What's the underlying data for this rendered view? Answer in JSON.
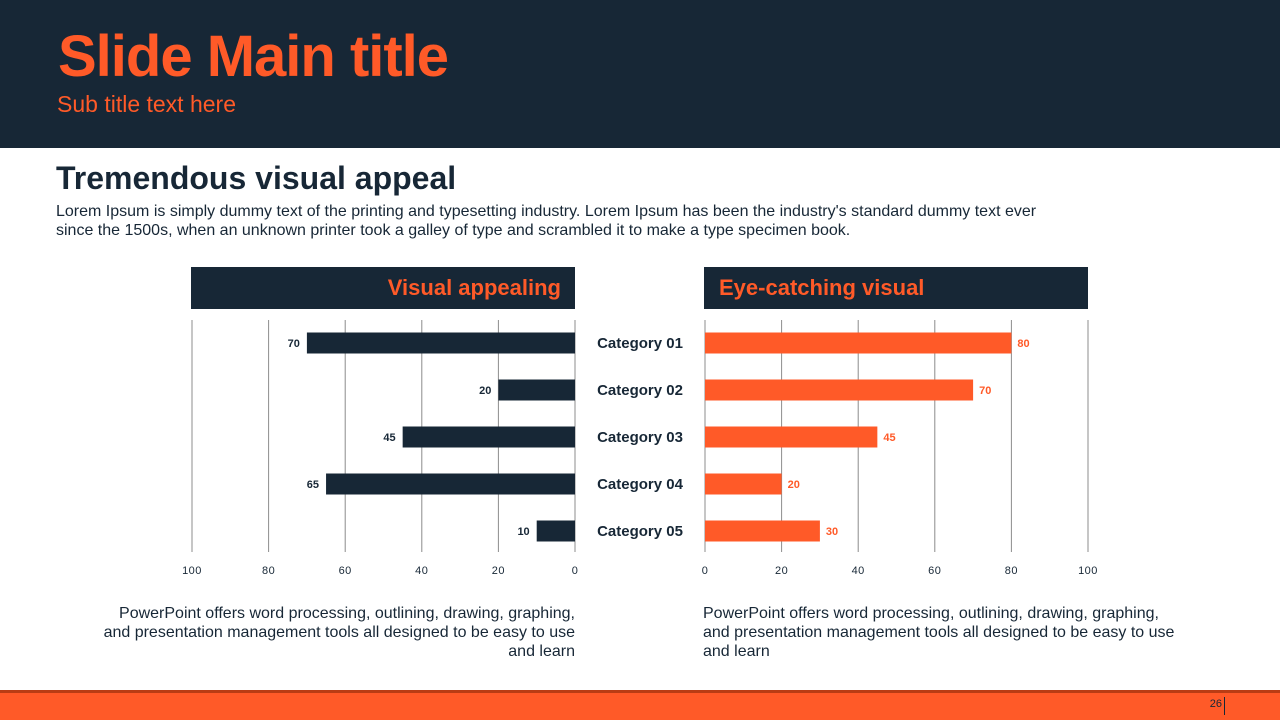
{
  "header": {
    "title": "Slide Main title",
    "subtitle": "Sub title text here"
  },
  "section": {
    "heading": "Tremendous visual appeal",
    "body": "Lorem Ipsum is simply dummy text of the printing and typesetting industry. Lorem Ipsum has been the industry's standard dummy text ever since the 1500s, when an unknown printer took a galley of type and scrambled it to make a type specimen book."
  },
  "colors": {
    "navy": "#172736",
    "orange": "#ff5a28",
    "grid": "#8c8c8c"
  },
  "chart_data": [
    {
      "type": "bar",
      "orientation": "horizontal",
      "direction": "right-to-left",
      "title": "Visual appealing",
      "categories": [
        "Category 01",
        "Category 02",
        "Category 03",
        "Category 04",
        "Category 05"
      ],
      "values": [
        70,
        20,
        45,
        65,
        10
      ],
      "xlim": [
        0,
        100
      ],
      "ticks": [
        "0",
        "20",
        "40",
        "60",
        "80",
        "100"
      ],
      "color": "#172736",
      "label_color": "#172736"
    },
    {
      "type": "bar",
      "orientation": "horizontal",
      "direction": "left-to-right",
      "title": "Eye-catching visual",
      "categories": [
        "Category 01",
        "Category 02",
        "Category 03",
        "Category 04",
        "Category 05"
      ],
      "values": [
        80,
        70,
        45,
        20,
        30
      ],
      "xlim": [
        0,
        100
      ],
      "ticks": [
        "0",
        "20",
        "40",
        "60",
        "80",
        "100"
      ],
      "color": "#ff5a28",
      "label_color": "#ff5a28"
    }
  ],
  "captions": {
    "left": "PowerPoint offers word processing, outlining, drawing, graphing, and presentation management tools all designed to be easy to use and learn",
    "right": "PowerPoint offers word processing, outlining, drawing, graphing, and presentation management tools all designed to be easy to use and learn"
  },
  "footer": {
    "page_number": "26"
  }
}
